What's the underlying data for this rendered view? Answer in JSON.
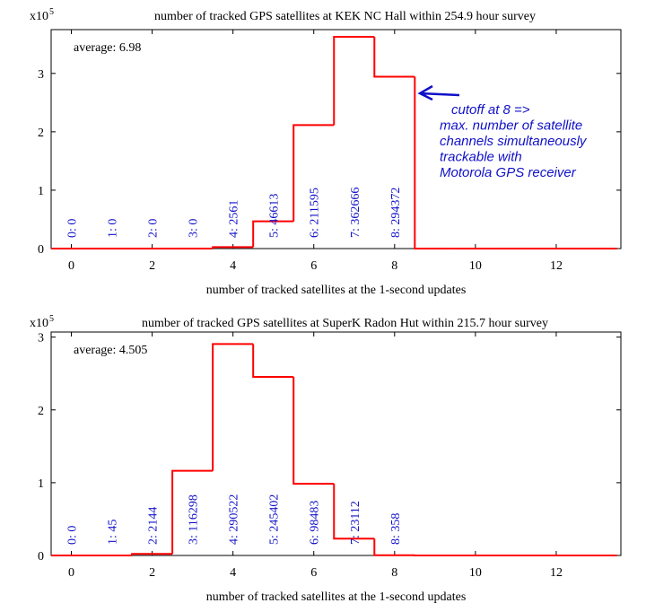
{
  "chart_data": [
    {
      "type": "histogram",
      "title": "number of tracked GPS satellites at KEK NC Hall within 254.9 hour survey",
      "x_label": "number of tracked satellites at the 1-second updates",
      "y_scale": "x10",
      "y_scale_exponent": "5",
      "annotation": "average: 6.98",
      "note": [
        "cutoff at 8 =>",
        "max. number of satellite",
        "channels simultaneously",
        "trackable with",
        "Motorola GPS receiver"
      ],
      "bins": [
        -0.5,
        0.5,
        1.5,
        2.5,
        3.5,
        4.5,
        5.5,
        6.5,
        7.5,
        8.5,
        9.5,
        10.5,
        11.5,
        12.5,
        13.5
      ],
      "values": [
        0,
        0,
        0,
        0,
        2561,
        46613,
        211595,
        362666,
        294372,
        0,
        0,
        0,
        0,
        0
      ],
      "value_labels": [
        "0: 0",
        "1: 0",
        "2: 0",
        "3: 0",
        "4: 2561",
        "5: 46613",
        "6: 211595",
        "7: 362666",
        "8: 294372",
        null,
        null,
        null,
        null,
        null
      ],
      "color": "#ff0000",
      "label_color": "#1010c8",
      "note_color": "#1010c8",
      "xlim": [
        -0.5,
        13.6
      ],
      "xticks": [
        0,
        2,
        4,
        6,
        8,
        10,
        12
      ],
      "ylim": [
        0,
        375000
      ],
      "yticks": [
        {
          "value": 0,
          "label": "0"
        },
        {
          "value": 100000,
          "label": "1"
        },
        {
          "value": 200000,
          "label": "2"
        },
        {
          "value": 300000,
          "label": "3"
        }
      ]
    },
    {
      "type": "histogram",
      "title": "number of tracked GPS satellites at SuperK Radon Hut within 215.7 hour survey",
      "x_label": "number of tracked satellites at the 1-second updates",
      "y_scale": "x10",
      "y_scale_exponent": "5",
      "annotation": "average: 4.505",
      "bins": [
        -0.5,
        0.5,
        1.5,
        2.5,
        3.5,
        4.5,
        5.5,
        6.5,
        7.5,
        8.5,
        9.5,
        10.5,
        11.5,
        12.5,
        13.5
      ],
      "values": [
        0,
        45,
        2144,
        116298,
        290522,
        245402,
        98483,
        23112,
        358,
        0,
        0,
        0,
        0,
        0
      ],
      "value_labels": [
        "0: 0",
        "1: 45",
        "2: 2144",
        "3: 116298",
        "4: 290522",
        "5: 245402",
        "6: 98483",
        "7: 23112",
        "8: 358",
        null,
        null,
        null,
        null,
        null
      ],
      "color": "#ff0000",
      "label_color": "#1010c8",
      "xlim": [
        -0.5,
        13.6
      ],
      "xticks": [
        0,
        2,
        4,
        6,
        8,
        10,
        12
      ],
      "ylim": [
        0,
        307000
      ],
      "yticks": [
        {
          "value": 0,
          "label": "0"
        },
        {
          "value": 100000,
          "label": "1"
        },
        {
          "value": 200000,
          "label": "2"
        },
        {
          "value": 300000,
          "label": "3"
        }
      ]
    }
  ]
}
